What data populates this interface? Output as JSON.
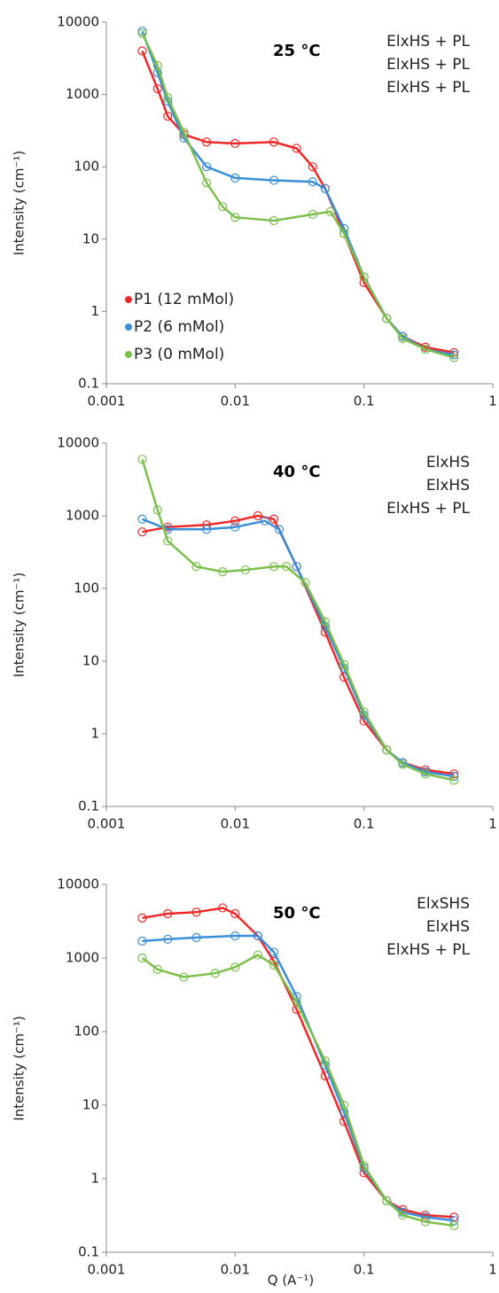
{
  "chart_data": [
    {
      "type": "scatter",
      "annotation": "25 °C",
      "y_label": "Intensity (cm⁻¹)",
      "xlim": [
        0.001,
        1
      ],
      "xticks": [
        0.001,
        0.01,
        0.1,
        1
      ],
      "ylim": [
        0.1,
        10000
      ],
      "yticks": [
        0.1,
        1,
        10,
        100,
        1000,
        10000
      ],
      "log_x": true,
      "log_y": true,
      "labels": [
        {
          "text": "ElxHS + PL",
          "color": "#f02828"
        },
        {
          "text": "ElxHS + PL",
          "color": "#3a8fd8"
        },
        {
          "text": "ElxHS + PL",
          "color": "#7cbf4a"
        }
      ],
      "series": [
        {
          "name": "P1 (12 mMol)",
          "color": "#f02828",
          "x": [
            0.0019,
            0.0025,
            0.003,
            0.004,
            0.006,
            0.01,
            0.02,
            0.03,
            0.04,
            0.05,
            0.07,
            0.1,
            0.15,
            0.2,
            0.3,
            0.5
          ],
          "values": [
            4000,
            1200,
            500,
            280,
            220,
            210,
            220,
            180,
            100,
            50,
            12,
            2.5,
            0.8,
            0.45,
            0.32,
            0.27
          ]
        },
        {
          "name": "P2 (6 mMol)",
          "color": "#3a8fd8",
          "x": [
            0.0019,
            0.0025,
            0.003,
            0.004,
            0.006,
            0.01,
            0.02,
            0.04,
            0.05,
            0.07,
            0.1,
            0.15,
            0.2,
            0.3,
            0.5
          ],
          "values": [
            7500,
            2000,
            800,
            250,
            100,
            70,
            65,
            62,
            50,
            14,
            3,
            0.8,
            0.45,
            0.3,
            0.25
          ]
        },
        {
          "name": "P3 (0 mMol)",
          "color": "#7cbf4a",
          "x": [
            0.0019,
            0.0025,
            0.003,
            0.004,
            0.006,
            0.008,
            0.01,
            0.02,
            0.04,
            0.055,
            0.07,
            0.1,
            0.15,
            0.2,
            0.3,
            0.5
          ],
          "values": [
            7000,
            2500,
            900,
            300,
            60,
            28,
            20,
            18,
            22,
            24,
            12,
            3,
            0.8,
            0.42,
            0.3,
            0.23
          ]
        }
      ]
    },
    {
      "type": "scatter",
      "annotation": "40 °C",
      "y_label": "Intensity (cm⁻¹)",
      "xlim": [
        0.001,
        1
      ],
      "xticks": [
        0.001,
        0.01,
        0.1,
        1
      ],
      "ylim": [
        0.1,
        10000
      ],
      "yticks": [
        0.1,
        1,
        10,
        100,
        1000,
        10000
      ],
      "log_x": true,
      "log_y": true,
      "labels": [
        {
          "text": "ElxHS",
          "color": "#f02828"
        },
        {
          "text": "ElxHS",
          "color": "#3a8fd8"
        },
        {
          "text": "ElxHS + PL",
          "color": "#7cbf4a"
        }
      ],
      "series": [
        {
          "color": "#f02828",
          "x": [
            0.0019,
            0.003,
            0.006,
            0.01,
            0.015,
            0.02,
            0.03,
            0.05,
            0.07,
            0.1,
            0.15,
            0.2,
            0.3,
            0.5
          ],
          "values": [
            600,
            700,
            750,
            850,
            1000,
            900,
            200,
            25,
            6,
            1.5,
            0.6,
            0.4,
            0.32,
            0.28
          ]
        },
        {
          "color": "#3a8fd8",
          "x": [
            0.0019,
            0.003,
            0.006,
            0.01,
            0.017,
            0.022,
            0.03,
            0.05,
            0.07,
            0.1,
            0.15,
            0.2,
            0.3,
            0.5
          ],
          "values": [
            900,
            650,
            650,
            700,
            850,
            650,
            200,
            30,
            8,
            1.8,
            0.6,
            0.4,
            0.3,
            0.26
          ]
        },
        {
          "color": "#7cbf4a",
          "x": [
            0.0019,
            0.0025,
            0.003,
            0.005,
            0.008,
            0.012,
            0.02,
            0.025,
            0.035,
            0.05,
            0.07,
            0.1,
            0.15,
            0.2,
            0.3,
            0.5
          ],
          "values": [
            6000,
            1200,
            450,
            200,
            170,
            180,
            200,
            200,
            120,
            35,
            9,
            2,
            0.6,
            0.38,
            0.28,
            0.23
          ]
        }
      ]
    },
    {
      "type": "scatter",
      "annotation": "50 °C",
      "y_label": "Intensity (cm⁻¹)",
      "x_label": "Q (A⁻¹)",
      "xlim": [
        0.001,
        1
      ],
      "xticks": [
        0.001,
        0.01,
        0.1,
        1
      ],
      "ylim": [
        0.1,
        10000
      ],
      "yticks": [
        0.1,
        1,
        10,
        100,
        1000,
        10000
      ],
      "log_x": true,
      "log_y": true,
      "labels": [
        {
          "text": "ElxSHS",
          "color": "#f02828"
        },
        {
          "text": "ElxHS",
          "color": "#3a8fd8"
        },
        {
          "text": "ElxHS + PL",
          "color": "#7cbf4a"
        }
      ],
      "series": [
        {
          "color": "#f02828",
          "x": [
            0.0019,
            0.003,
            0.005,
            0.008,
            0.01,
            0.015,
            0.02,
            0.03,
            0.05,
            0.07,
            0.1,
            0.15,
            0.2,
            0.3,
            0.5
          ],
          "values": [
            3500,
            4000,
            4200,
            4800,
            4000,
            2000,
            900,
            200,
            25,
            6,
            1.2,
            0.5,
            0.38,
            0.32,
            0.3
          ]
        },
        {
          "color": "#3a8fd8",
          "x": [
            0.0019,
            0.003,
            0.005,
            0.01,
            0.015,
            0.02,
            0.03,
            0.05,
            0.07,
            0.1,
            0.15,
            0.2,
            0.3,
            0.5
          ],
          "values": [
            1700,
            1800,
            1900,
            2000,
            2000,
            1200,
            300,
            35,
            8,
            1.4,
            0.5,
            0.35,
            0.3,
            0.27
          ]
        },
        {
          "color": "#7cbf4a",
          "x": [
            0.0019,
            0.0025,
            0.004,
            0.007,
            0.01,
            0.015,
            0.02,
            0.03,
            0.05,
            0.07,
            0.1,
            0.15,
            0.2,
            0.3,
            0.5
          ],
          "values": [
            1000,
            700,
            550,
            620,
            750,
            1100,
            800,
            250,
            40,
            10,
            1.5,
            0.5,
            0.32,
            0.26,
            0.23
          ]
        }
      ]
    }
  ]
}
